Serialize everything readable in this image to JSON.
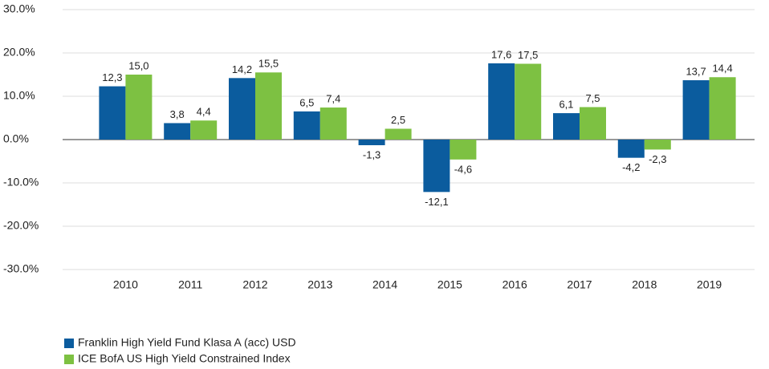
{
  "chart_data": {
    "type": "bar",
    "categories": [
      "2010",
      "2011",
      "2012",
      "2013",
      "2014",
      "2015",
      "2016",
      "2017",
      "2018",
      "2019"
    ],
    "series": [
      {
        "name": "Franklin High Yield Fund Klasa A (acc) USD",
        "color": "#0b5c9e",
        "values": [
          12.3,
          3.8,
          14.2,
          6.5,
          -1.3,
          -12.1,
          17.6,
          6.1,
          -4.2,
          13.7
        ],
        "value_labels": [
          "12,3",
          "3,8",
          "14,2",
          "6,5",
          "-1,3",
          "-12,1",
          "17,6",
          "6,1",
          "-4,2",
          "13,7"
        ]
      },
      {
        "name": "ICE BofA US High Yield Constrained Index",
        "color": "#7dc142",
        "values": [
          15.0,
          4.4,
          15.5,
          7.4,
          2.5,
          -4.6,
          17.5,
          7.5,
          -2.3,
          14.4
        ],
        "value_labels": [
          "15,0",
          "4,4",
          "15,5",
          "7,4",
          "2,5",
          "-4,6",
          "17,5",
          "7,5",
          "-2,3",
          "14,4"
        ]
      }
    ],
    "ylim": [
      -30,
      30
    ],
    "yticks": [
      {
        "value": -30,
        "label": "-30.0%"
      },
      {
        "value": -20,
        "label": "-20.0%"
      },
      {
        "value": -10,
        "label": "-10.0%"
      },
      {
        "value": 0,
        "label": "0.0%"
      },
      {
        "value": 10,
        "label": "10.0%"
      },
      {
        "value": 20,
        "label": "20.0%"
      },
      {
        "value": 30,
        "label": "30.0%"
      }
    ],
    "grid": true
  }
}
